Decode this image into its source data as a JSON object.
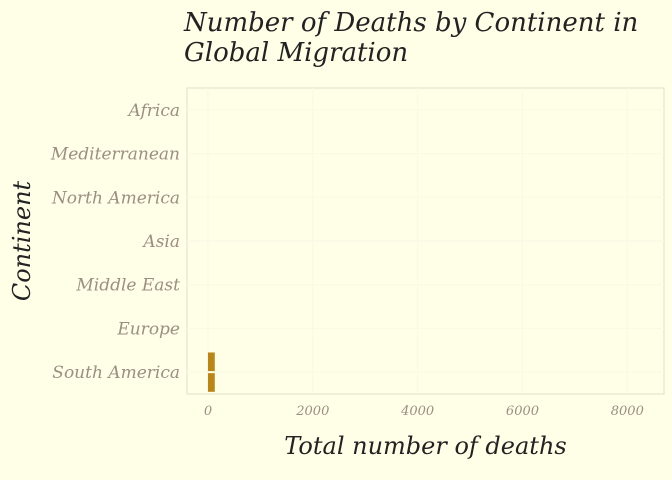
{
  "chart_data": {
    "type": "bar",
    "orientation": "horizontal",
    "title": "Number of Deaths by Continent in Global Migration",
    "xlabel": "Total number of deaths",
    "ylabel": "Continent",
    "categories": [
      "Africa",
      "Mediterranean",
      "North America",
      "Asia",
      "Middle East",
      "Europe",
      "South America"
    ],
    "series": [
      {
        "values": [
          null,
          null,
          null,
          null,
          null,
          null,
          130
        ]
      }
    ],
    "xlim": [
      -400,
      8700
    ],
    "xticks": [
      0,
      2000,
      4000,
      6000,
      8000
    ],
    "xtick_labels": [
      "0",
      "2000",
      "4000",
      "6000",
      "8000"
    ],
    "grid": true,
    "bar_color": "#B8861A"
  }
}
